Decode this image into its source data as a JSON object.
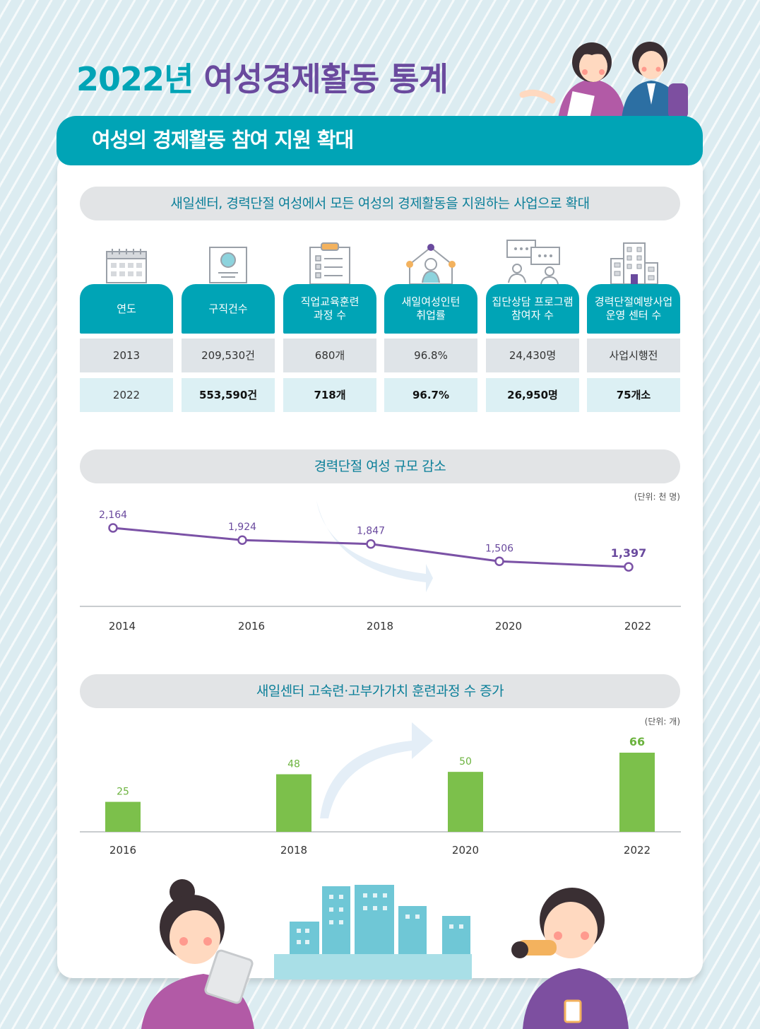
{
  "header": {
    "title_year": "2022년",
    "title_main": "여성경제활동 통계",
    "subtitle": "여성의 경제활동 참여 지원 확대"
  },
  "section1": {
    "title": "새일센터, 경력단절 여성에서 모든 여성의 경제활동을 지원하는 사업으로 확대",
    "columns": [
      {
        "icon": "calendar-icon",
        "label": "연도",
        "v2013": "2013",
        "v2022": "2022"
      },
      {
        "icon": "resume-icon",
        "label": "구직건수",
        "v2013": "209,530건",
        "v2022": "553,590건"
      },
      {
        "icon": "clipboard-icon",
        "label": "직업교육훈련\n과정 수",
        "v2013": "680개",
        "v2022": "718개"
      },
      {
        "icon": "person-network-icon",
        "label": "새일여성인턴\n취업률",
        "v2013": "96.8%",
        "v2022": "96.7%"
      },
      {
        "icon": "chat-bubbles-icon",
        "label": "집단상담 프로그램\n참여자 수",
        "v2013": "24,430명",
        "v2022": "26,950명"
      },
      {
        "icon": "building-icon",
        "label": "경력단절예방사업\n운영 센터 수",
        "v2013": "사업시행전",
        "v2022": "75개소"
      }
    ]
  },
  "section2": {
    "title": "경력단절 여성 규모 감소",
    "unit": "(단위: 천 명)"
  },
  "section3": {
    "title": "새일센터 고숙련·고부가가치 훈련과정 수 증가",
    "unit": "(단위: 개)"
  },
  "colors": {
    "teal": "#00a4b6",
    "purple": "#6a4a9e",
    "line": "#7b52a6",
    "bar": "#7cc04b"
  },
  "chart_data": [
    {
      "type": "line",
      "title": "경력단절 여성 규모 감소",
      "ylabel": "(단위: 천 명)",
      "x": [
        "2014",
        "2016",
        "2018",
        "2020",
        "2022"
      ],
      "values": [
        2164,
        1924,
        1847,
        1506,
        1397
      ],
      "labels": [
        "2,164",
        "1,924",
        "1,847",
        "1,506",
        "1,397"
      ],
      "ylim": [
        0,
        2300
      ],
      "grid": false
    },
    {
      "type": "bar",
      "title": "새일센터 고숙련·고부가가치 훈련과정 수 증가",
      "ylabel": "(단위: 개)",
      "categories": [
        "2016",
        "2018",
        "2020",
        "2022"
      ],
      "values": [
        25,
        48,
        50,
        66
      ],
      "ylim": [
        0,
        70
      ],
      "grid": false
    }
  ]
}
